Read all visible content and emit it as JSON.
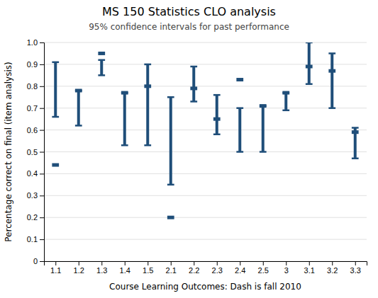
{
  "chart_data": {
    "type": "interval",
    "title": "MS 150 Statistics CLO analysis",
    "subtitle": "95% confidence intervals for past performance",
    "xlabel": "Course Learning Outcomes: Dash is fall 2010",
    "ylabel": "Percentage correct on final (item analysis)",
    "categories": [
      "1.1",
      "1.2",
      "1.3",
      "1.4",
      "1.5",
      "2.1",
      "2.2",
      "2.3",
      "2.4",
      "2.5",
      "3",
      "3.1",
      "3.2",
      "3.3"
    ],
    "values": [
      0.44,
      0.78,
      0.95,
      0.77,
      0.8,
      0.2,
      0.79,
      0.65,
      0.83,
      0.71,
      0.77,
      0.89,
      0.87,
      0.59
    ],
    "ci_lower": [
      0.66,
      0.62,
      0.85,
      0.53,
      0.53,
      0.35,
      0.73,
      0.58,
      0.5,
      0.5,
      0.69,
      0.81,
      0.7,
      0.47
    ],
    "ci_upper": [
      0.91,
      0.78,
      0.92,
      0.77,
      0.9,
      0.75,
      0.89,
      0.76,
      0.7,
      0.71,
      0.77,
      1.0,
      0.95,
      0.61
    ],
    "color": "#1F4E79",
    "ylim": [
      0,
      1.0
    ],
    "yticks": [
      0,
      0.1,
      0.2,
      0.3,
      0.4,
      0.5,
      0.6,
      0.7,
      0.8,
      0.9,
      {
        "value": 1.0,
        "label": "1.0"
      }
    ],
    "grid": true
  }
}
